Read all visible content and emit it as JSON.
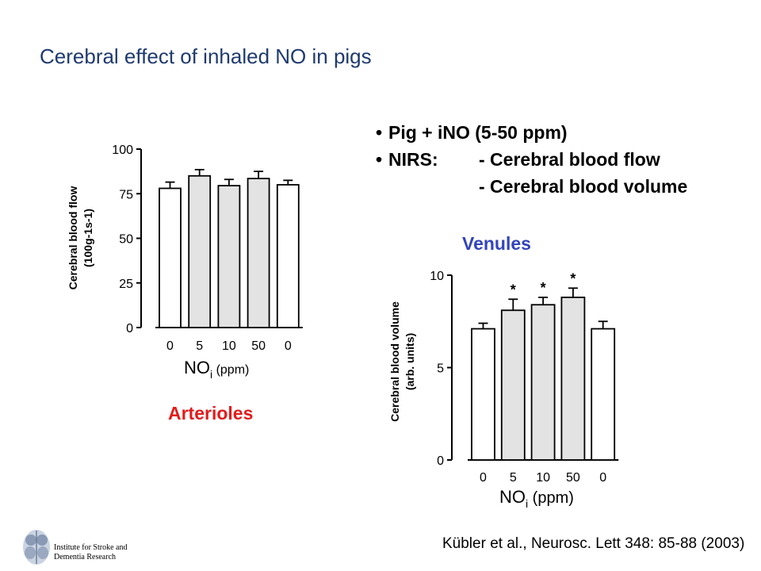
{
  "slide": {
    "title": "Cerebral effect of inhaled NO in pigs",
    "bullets": {
      "line1": "Pig + iNO (5-50 ppm)",
      "line2_label": "NIRS:",
      "line2_item": "- Cerebral blood flow",
      "line3_item": "- Cerebral blood volume"
    },
    "citation": "Kübler et al., Neurosc. Lett 348: 85-88 (2003)",
    "institute_line1": "Institute for Stroke and",
    "institute_line2": "Dementia Research",
    "colors": {
      "title": "#1f3a70",
      "arterioles": "#e31b1b",
      "venules": "#3344bb",
      "bar_shaded": "#e3e3e3",
      "bar_plain": "#ffffff"
    }
  },
  "chart_data": [
    {
      "type": "bar",
      "group_label": "Arterioles",
      "categories": [
        "0",
        "5",
        "10",
        "50",
        "0"
      ],
      "values": [
        78,
        85,
        79.5,
        83.5,
        80
      ],
      "errors": [
        3.5,
        3.5,
        3.5,
        4,
        2.5
      ],
      "shaded": [
        false,
        true,
        true,
        true,
        false
      ],
      "ylabel_line1": "Cerebral blood flow",
      "ylabel_line2": "(100g-1s-1)",
      "xlabel_main": "NO",
      "xlabel_sub": "i",
      "xlabel_unit": "(ppm)",
      "ylim": [
        0,
        100
      ],
      "yticks": [
        0,
        25,
        50,
        75,
        100
      ],
      "ytick_labels": [
        "0",
        "25",
        "50",
        "75",
        "100"
      ]
    },
    {
      "type": "bar",
      "group_label": "Venules",
      "categories": [
        "0",
        "5",
        "10",
        "50",
        "0"
      ],
      "values": [
        7.1,
        8.1,
        8.4,
        8.8,
        7.1
      ],
      "errors": [
        0.3,
        0.6,
        0.4,
        0.5,
        0.4
      ],
      "shaded": [
        false,
        true,
        true,
        true,
        false
      ],
      "significance": [
        "",
        "*",
        "*",
        "*",
        ""
      ],
      "ylabel_line1": "Cerebral blood volume",
      "ylabel_line2": "(arb. units)",
      "xlabel_main": "NO",
      "xlabel_sub": "i",
      "xlabel_unit": "(ppm)",
      "ylim": [
        0,
        10
      ],
      "yticks": [
        0,
        5,
        10
      ],
      "ytick_labels": [
        "0",
        "5",
        "10"
      ]
    }
  ]
}
